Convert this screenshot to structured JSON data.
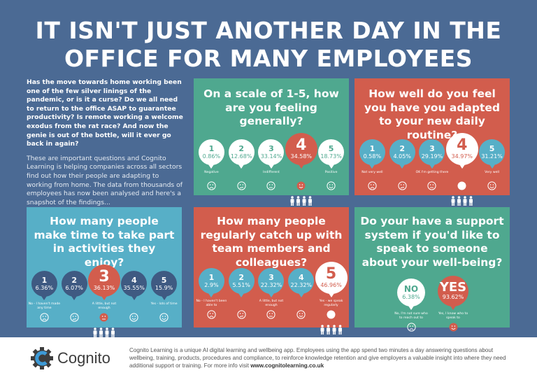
{
  "title": [
    "IT ISN'T JUST ANOTHER DAY IN THE",
    "OFFICE FOR MANY EMPLOYEES"
  ],
  "intro": {
    "question": "Has the move towards home working been one of the few silver linings of the pandemic, or is it a curse? Do we all need to return to the office ASAP to guarantee productivity? Is remote working a welcome exodus from the rat race? And now the genie is out of the bottle, will it ever go back in again?",
    "body": "These are important questions and Cognito Learning is helping companies across all sectors find out how their people are adapting to working from home. The data from thousands of employees has now been analysed and here's a snapshot of the findings..."
  },
  "colors": {
    "background": "#4b6a94",
    "green": "#4fa88f",
    "red": "#d25d4d",
    "blue": "#57afc7",
    "navy": "#3f5a82"
  },
  "panels": [
    {
      "title": "On a scale of 1-5, how are you feeling generally?",
      "highlight": 3,
      "options": [
        {
          "n": "1",
          "v": "0.86%",
          "label": "Negative",
          "face": "sad"
        },
        {
          "n": "2",
          "v": "12.68%",
          "label": "",
          "face": "meh"
        },
        {
          "n": "3",
          "v": "33.14%",
          "label": "Indifferent",
          "face": "neutral"
        },
        {
          "n": "4",
          "v": "34.58%",
          "label": "",
          "face": "smile"
        },
        {
          "n": "5",
          "v": "18.73%",
          "label": "Positive",
          "face": "happy"
        }
      ]
    },
    {
      "title": "How well do you feel you have you adapted to your new daily routine?",
      "highlight": 3,
      "options": [
        {
          "n": "1",
          "v": "0.58%",
          "label": "Not very well",
          "face": "sad"
        },
        {
          "n": "2",
          "v": "4.05%",
          "label": "",
          "face": "meh"
        },
        {
          "n": "3",
          "v": "29.19%",
          "label": "OK I'm getting there",
          "face": "neutral"
        },
        {
          "n": "4",
          "v": "34.97%",
          "label": "",
          "face": "smile"
        },
        {
          "n": "5",
          "v": "31.21%",
          "label": "Very well",
          "face": "happy"
        }
      ]
    },
    {
      "title": "How many people make time to take part in activities they enjoy?",
      "highlight": 2,
      "options": [
        {
          "n": "1",
          "v": "6.36%",
          "label": "No - I haven't made any time",
          "face": "sad"
        },
        {
          "n": "2",
          "v": "6.07%",
          "label": "",
          "face": "meh"
        },
        {
          "n": "3",
          "v": "36.13%",
          "label": "A little, but not enough",
          "face": "neutral"
        },
        {
          "n": "4",
          "v": "35.55%",
          "label": "",
          "face": "smile"
        },
        {
          "n": "5",
          "v": "15.9%",
          "label": "Yes - lots of time",
          "face": "happy"
        }
      ]
    },
    {
      "title": "How many people regularly catch up with team members and colleagues?",
      "highlight": 4,
      "options": [
        {
          "n": "1",
          "v": "2.9%",
          "label": "No - I haven't been able to",
          "face": "sad"
        },
        {
          "n": "2",
          "v": "5.51%",
          "label": "",
          "face": "meh"
        },
        {
          "n": "3",
          "v": "22.32%",
          "label": "A little, but not enough",
          "face": "neutral"
        },
        {
          "n": "4",
          "v": "22.32%",
          "label": "",
          "face": "smile"
        },
        {
          "n": "5",
          "v": "46.96%",
          "label": "Yes - we speak regularly",
          "face": "happy"
        }
      ]
    },
    {
      "title": "Do your have a support system if you'd like to speak to someone about your well-being?",
      "highlight": 1,
      "options": [
        {
          "n": "NO",
          "v": "6.38%",
          "label": "No, I'm not sure who to reach out to",
          "face": "sad"
        },
        {
          "n": "YES",
          "v": "93.62%",
          "label": "Yes, I know who to speak to",
          "face": "happy"
        }
      ]
    }
  ],
  "footer": {
    "logo_text": "Cognito",
    "text": "Cognito Learning is a unique AI digital learning and wellbeing app. Employees using the app spend two minutes a day answering questions about wellbeing, training, products, procedures and compliance, to reinforce knowledge retention and give employers a valuable insight into where they need additional support or training. For more info visit",
    "link": "www.cognitolearning.co.uk"
  }
}
